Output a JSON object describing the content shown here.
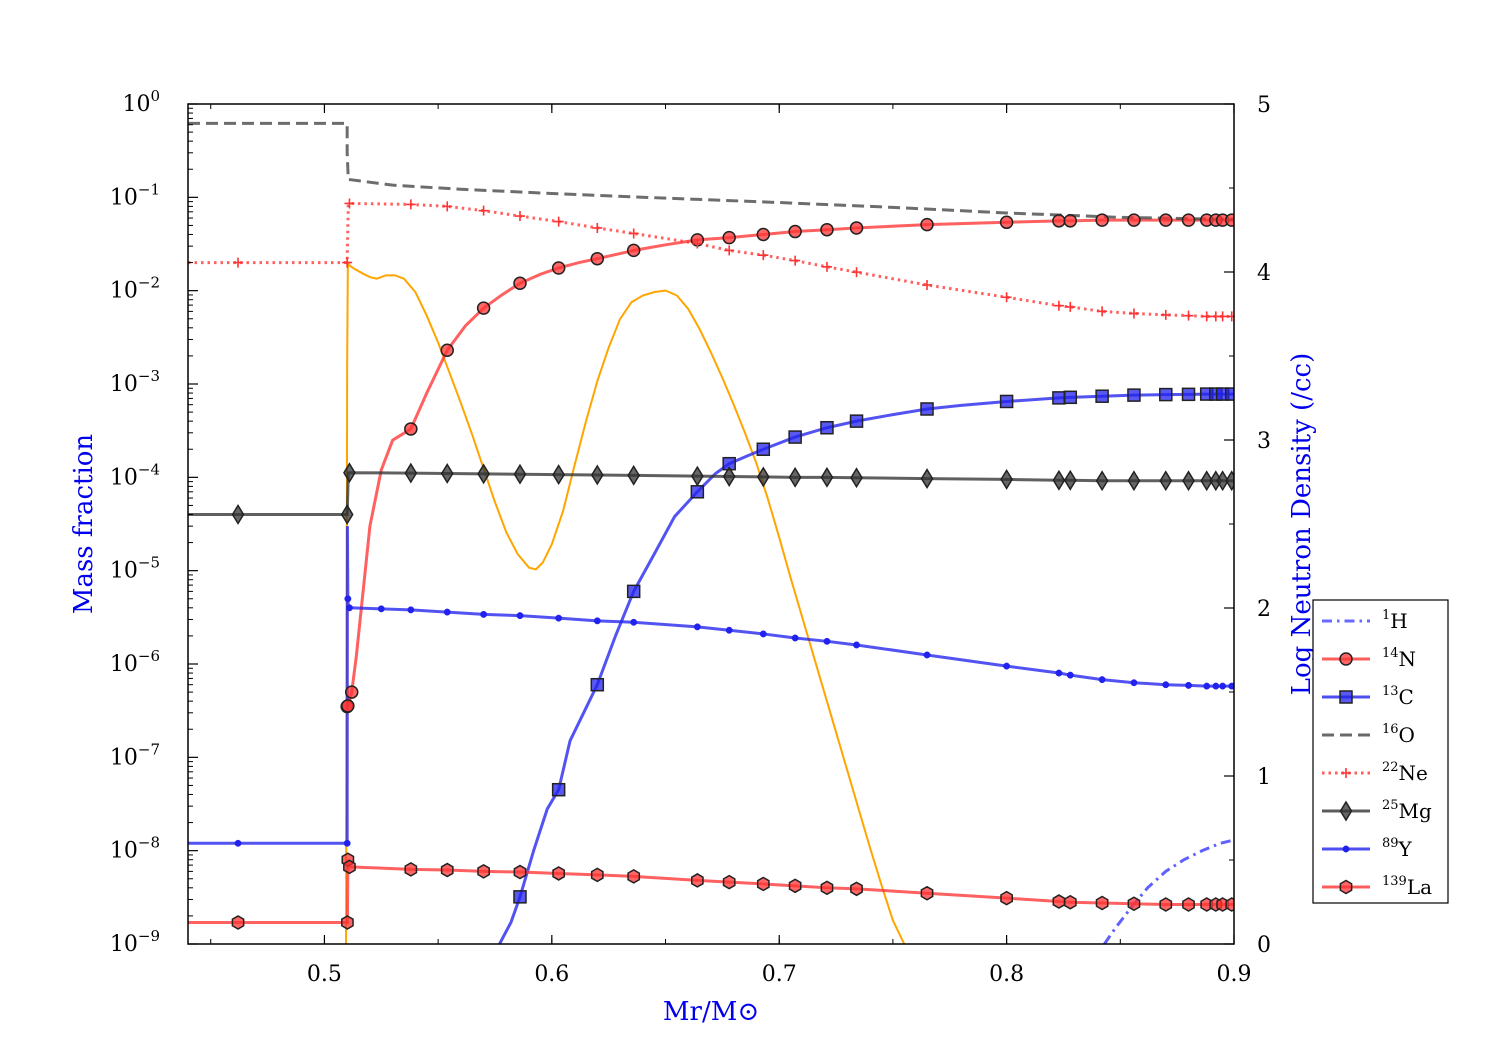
{
  "chart_data": {
    "type": "line",
    "xlabel": "Mr/M⊙",
    "ylabel": "Mass fraction",
    "y2label": "Log Neutron Density (/cc)",
    "xlim": [
      0.44,
      0.9
    ],
    "ylim": [
      1e-09,
      1
    ],
    "yscale": "log",
    "y2lim": [
      0,
      5
    ],
    "grid": false,
    "legend_position": "right",
    "x_ticks": [
      "0.5",
      "0.6",
      "0.7",
      "0.8",
      "0.9"
    ],
    "y_ticks": [
      {
        "base": "10",
        "exp": "0"
      },
      {
        "base": "10",
        "exp": "−1"
      },
      {
        "base": "10",
        "exp": "−2"
      },
      {
        "base": "10",
        "exp": "−3"
      },
      {
        "base": "10",
        "exp": "−4"
      },
      {
        "base": "10",
        "exp": "−5"
      },
      {
        "base": "10",
        "exp": "−6"
      },
      {
        "base": "10",
        "exp": "−7"
      },
      {
        "base": "10",
        "exp": "−8"
      },
      {
        "base": "10",
        "exp": "−9"
      }
    ],
    "y2_ticks": [
      "0",
      "1",
      "2",
      "3",
      "4",
      "5"
    ],
    "series": [
      {
        "name": "1H",
        "iso": "1",
        "elem": "H",
        "color": "#4444ff",
        "dash": "dashdot",
        "marker": "none",
        "x": [
          0.843,
          0.848,
          0.855,
          0.862,
          0.87,
          0.878,
          0.886,
          0.894,
          0.9
        ],
        "y": [
          1e-09,
          1.5e-09,
          2.5e-09,
          4e-09,
          6e-09,
          8e-09,
          1e-08,
          1.2e-08,
          1.3e-08
        ]
      },
      {
        "name": "14N",
        "iso": "14",
        "elem": "N",
        "color": "#ff3333",
        "dash": "solid",
        "marker": "circle",
        "x": [
          0.51,
          0.5105,
          0.511,
          0.512,
          0.514,
          0.517,
          0.52,
          0.525,
          0.53,
          0.538,
          0.545,
          0.554,
          0.562,
          0.57,
          0.578,
          0.586,
          0.595,
          0.603,
          0.612,
          0.62,
          0.63,
          0.636,
          0.65,
          0.664,
          0.678,
          0.693,
          0.707,
          0.721,
          0.734,
          0.765,
          0.8,
          0.823,
          0.828,
          0.842,
          0.856,
          0.87,
          0.88,
          0.888,
          0.892,
          0.895,
          0.898,
          0.9
        ],
        "y": [
          3.5e-07,
          3.6e-07,
          4e-07,
          5e-07,
          1.2e-06,
          6e-06,
          3e-05,
          0.00012,
          0.00025,
          0.00033,
          0.0008,
          0.0023,
          0.0042,
          0.0065,
          0.009,
          0.012,
          0.015,
          0.0175,
          0.02,
          0.022,
          0.025,
          0.027,
          0.031,
          0.035,
          0.037,
          0.04,
          0.043,
          0.045,
          0.047,
          0.051,
          0.054,
          0.056,
          0.056,
          0.057,
          0.057,
          0.057,
          0.057,
          0.057,
          0.057,
          0.057,
          0.057,
          0.057
        ],
        "mx": [
          0.51,
          0.5103,
          0.512,
          0.538,
          0.554,
          0.57,
          0.586,
          0.603,
          0.62,
          0.636,
          0.664,
          0.678,
          0.693,
          0.707,
          0.721,
          0.734,
          0.765,
          0.8,
          0.823,
          0.828,
          0.842,
          0.856,
          0.87,
          0.88,
          0.888,
          0.892,
          0.895,
          0.899
        ]
      },
      {
        "name": "13C",
        "iso": "13",
        "elem": "C",
        "color": "#2222ee",
        "dash": "solid",
        "marker": "square",
        "x": [
          0.577,
          0.582,
          0.586,
          0.592,
          0.598,
          0.603,
          0.608,
          0.614,
          0.62,
          0.628,
          0.636,
          0.645,
          0.654,
          0.664,
          0.672,
          0.678,
          0.686,
          0.693,
          0.707,
          0.721,
          0.734,
          0.75,
          0.765,
          0.78,
          0.8,
          0.823,
          0.828,
          0.842,
          0.856,
          0.87,
          0.88,
          0.888,
          0.892,
          0.895,
          0.898,
          0.9
        ],
        "y": [
          1e-09,
          1.7e-09,
          3.2e-09,
          1e-08,
          2.8e-08,
          4.5e-08,
          1.5e-07,
          3e-07,
          6e-07,
          2e-06,
          6e-06,
          1.5e-05,
          3.8e-05,
          7e-05,
          0.00011,
          0.00014,
          0.00017,
          0.0002,
          0.00027,
          0.00034,
          0.0004,
          0.00047,
          0.00054,
          0.00059,
          0.00065,
          0.00071,
          0.00072,
          0.00074,
          0.00076,
          0.00077,
          0.000775,
          0.00078,
          0.00078,
          0.00078,
          0.00078,
          0.00078
        ],
        "mx": [
          0.586,
          0.603,
          0.62,
          0.636,
          0.664,
          0.678,
          0.693,
          0.707,
          0.721,
          0.734,
          0.765,
          0.8,
          0.823,
          0.828,
          0.842,
          0.856,
          0.87,
          0.88,
          0.888,
          0.892,
          0.895,
          0.899
        ]
      },
      {
        "name": "16O",
        "iso": "16",
        "elem": "O",
        "color": "#444444",
        "dash": "dashed",
        "marker": "none",
        "x": [
          0.44,
          0.51,
          0.51,
          0.5105,
          0.511,
          0.53,
          0.56,
          0.6,
          0.65,
          0.7,
          0.75,
          0.8,
          0.85,
          0.9
        ],
        "y": [
          0.62,
          0.62,
          0.3,
          0.155,
          0.155,
          0.135,
          0.122,
          0.11,
          0.098,
          0.088,
          0.078,
          0.068,
          0.061,
          0.058
        ]
      },
      {
        "name": "22Ne",
        "iso": "22",
        "elem": "Ne",
        "color": "#ff3333",
        "dash": "dotted",
        "marker": "plus",
        "x": [
          0.44,
          0.51,
          0.5105,
          0.511,
          0.525,
          0.538,
          0.554,
          0.57,
          0.586,
          0.603,
          0.62,
          0.636,
          0.664,
          0.678,
          0.693,
          0.707,
          0.721,
          0.734,
          0.765,
          0.8,
          0.823,
          0.828,
          0.842,
          0.856,
          0.87,
          0.88,
          0.888,
          0.892,
          0.895,
          0.898,
          0.9
        ],
        "y": [
          0.02,
          0.02,
          0.085,
          0.086,
          0.085,
          0.084,
          0.08,
          0.072,
          0.063,
          0.055,
          0.047,
          0.041,
          0.032,
          0.027,
          0.024,
          0.021,
          0.018,
          0.0158,
          0.0115,
          0.0085,
          0.0069,
          0.0067,
          0.006,
          0.0057,
          0.0055,
          0.0054,
          0.0053,
          0.0053,
          0.0053,
          0.0053,
          0.0053
        ],
        "mx": [
          0.462,
          0.51,
          0.511,
          0.538,
          0.554,
          0.57,
          0.586,
          0.603,
          0.62,
          0.636,
          0.664,
          0.678,
          0.693,
          0.707,
          0.721,
          0.734,
          0.765,
          0.8,
          0.823,
          0.828,
          0.842,
          0.856,
          0.87,
          0.88,
          0.888,
          0.892,
          0.895,
          0.899
        ]
      },
      {
        "name": "25Mg",
        "iso": "25",
        "elem": "Mg",
        "color": "#333333",
        "dash": "solid",
        "marker": "diamond",
        "x": [
          0.44,
          0.51,
          0.5105,
          0.511,
          0.538,
          0.554,
          0.57,
          0.586,
          0.603,
          0.62,
          0.636,
          0.664,
          0.678,
          0.693,
          0.707,
          0.721,
          0.734,
          0.765,
          0.8,
          0.823,
          0.828,
          0.842,
          0.856,
          0.87,
          0.88,
          0.888,
          0.892,
          0.895,
          0.898,
          0.9
        ],
        "y": [
          4e-05,
          4e-05,
          0.000112,
          0.000112,
          0.000111,
          0.00011,
          0.000109,
          0.000108,
          0.000107,
          0.000106,
          0.000105,
          0.000103,
          0.000102,
          0.000101,
          0.0001,
          0.0001,
          9.9e-05,
          9.7e-05,
          9.5e-05,
          9.3e-05,
          9.3e-05,
          9.2e-05,
          9.2e-05,
          9.2e-05,
          9.2e-05,
          9.2e-05,
          9.2e-05,
          9.2e-05,
          9.2e-05,
          9.2e-05
        ],
        "mx": [
          0.462,
          0.51,
          0.511,
          0.538,
          0.554,
          0.57,
          0.586,
          0.603,
          0.62,
          0.636,
          0.664,
          0.678,
          0.693,
          0.707,
          0.721,
          0.734,
          0.765,
          0.8,
          0.823,
          0.828,
          0.842,
          0.856,
          0.87,
          0.88,
          0.888,
          0.892,
          0.895,
          0.899
        ]
      },
      {
        "name": "89Y",
        "iso": "89",
        "elem": "Y",
        "color": "#2222ee",
        "dash": "solid",
        "marker": "dot",
        "x": [
          0.44,
          0.51,
          0.5101,
          0.5103,
          0.5106,
          0.511,
          0.525,
          0.538,
          0.554,
          0.57,
          0.586,
          0.603,
          0.62,
          0.636,
          0.664,
          0.678,
          0.693,
          0.707,
          0.721,
          0.734,
          0.765,
          0.8,
          0.823,
          0.828,
          0.842,
          0.856,
          0.87,
          0.88,
          0.888,
          0.892,
          0.895,
          0.898,
          0.9
        ],
        "y": [
          1.2e-08,
          1.2e-08,
          3e-05,
          5e-06,
          4e-06,
          4e-06,
          3.9e-06,
          3.8e-06,
          3.6e-06,
          3.4e-06,
          3.3e-06,
          3.1e-06,
          2.9e-06,
          2.8e-06,
          2.5e-06,
          2.3e-06,
          2.1e-06,
          1.9e-06,
          1.75e-06,
          1.6e-06,
          1.25e-06,
          9.5e-07,
          8e-07,
          7.6e-07,
          6.8e-07,
          6.3e-07,
          6e-07,
          5.9e-07,
          5.8e-07,
          5.8e-07,
          5.8e-07,
          5.8e-07,
          5.8e-07
        ],
        "mx": [
          0.462,
          0.51,
          0.5103,
          0.511,
          0.525,
          0.538,
          0.554,
          0.57,
          0.586,
          0.603,
          0.62,
          0.636,
          0.664,
          0.678,
          0.693,
          0.707,
          0.721,
          0.734,
          0.765,
          0.8,
          0.823,
          0.828,
          0.842,
          0.856,
          0.87,
          0.88,
          0.888,
          0.892,
          0.895,
          0.899
        ]
      },
      {
        "name": "139La",
        "iso": "139",
        "elem": "La",
        "color": "#ff3333",
        "dash": "solid",
        "marker": "hexagon",
        "x": [
          0.44,
          0.51,
          0.5101,
          0.5103,
          0.5106,
          0.511,
          0.525,
          0.538,
          0.554,
          0.57,
          0.586,
          0.603,
          0.62,
          0.636,
          0.664,
          0.678,
          0.693,
          0.707,
          0.721,
          0.734,
          0.765,
          0.8,
          0.823,
          0.828,
          0.842,
          0.856,
          0.87,
          0.88,
          0.888,
          0.892,
          0.895,
          0.898,
          0.9
        ],
        "y": [
          1.7e-09,
          1.7e-09,
          1.7e-09,
          8e-09,
          6.8e-09,
          6.7e-09,
          6.5e-09,
          6.3e-09,
          6.2e-09,
          6e-09,
          5.9e-09,
          5.7e-09,
          5.5e-09,
          5.3e-09,
          4.8e-09,
          4.6e-09,
          4.4e-09,
          4.2e-09,
          4e-09,
          3.9e-09,
          3.5e-09,
          3.1e-09,
          2.85e-09,
          2.8e-09,
          2.75e-09,
          2.7e-09,
          2.65e-09,
          2.65e-09,
          2.65e-09,
          2.65e-09,
          2.65e-09,
          2.65e-09,
          2.65e-09
        ],
        "mx": [
          0.462,
          0.5101,
          0.5103,
          0.511,
          0.538,
          0.554,
          0.57,
          0.586,
          0.603,
          0.62,
          0.636,
          0.664,
          0.678,
          0.693,
          0.707,
          0.721,
          0.734,
          0.765,
          0.8,
          0.823,
          0.828,
          0.842,
          0.856,
          0.87,
          0.88,
          0.888,
          0.892,
          0.895,
          0.899
        ]
      }
    ],
    "neutron_density": {
      "color": "#ffa500",
      "axis": "right",
      "x": [
        0.5095,
        0.51,
        0.5103,
        0.5106,
        0.511,
        0.513,
        0.517,
        0.52,
        0.523,
        0.527,
        0.531,
        0.535,
        0.54,
        0.545,
        0.55,
        0.555,
        0.56,
        0.565,
        0.57,
        0.575,
        0.58,
        0.585,
        0.59,
        0.593,
        0.596,
        0.6,
        0.605,
        0.61,
        0.615,
        0.62,
        0.625,
        0.63,
        0.635,
        0.64,
        0.645,
        0.65,
        0.655,
        0.66,
        0.665,
        0.67,
        0.675,
        0.68,
        0.685,
        0.69,
        0.695,
        0.7,
        0.705,
        0.71,
        0.715,
        0.72,
        0.725,
        0.73,
        0.735,
        0.74,
        0.745,
        0.75,
        0.755
      ],
      "y": [
        0,
        3.45,
        4.06,
        4.05,
        4.04,
        4.02,
        3.99,
        3.97,
        3.96,
        3.98,
        3.98,
        3.96,
        3.88,
        3.74,
        3.58,
        3.4,
        3.22,
        3.03,
        2.83,
        2.63,
        2.45,
        2.32,
        2.24,
        2.23,
        2.27,
        2.38,
        2.58,
        2.85,
        3.11,
        3.35,
        3.55,
        3.72,
        3.82,
        3.86,
        3.88,
        3.89,
        3.86,
        3.78,
        3.66,
        3.52,
        3.37,
        3.21,
        3.04,
        2.86,
        2.65,
        2.42,
        2.18,
        1.95,
        1.72,
        1.49,
        1.26,
        1.03,
        0.8,
        0.57,
        0.35,
        0.14,
        0.0
      ]
    }
  }
}
